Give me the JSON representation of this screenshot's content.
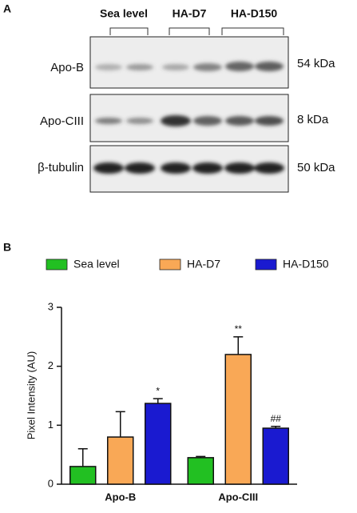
{
  "panel_a": {
    "label": "A",
    "groups": [
      "Sea level",
      "HA-D7",
      "HA-D150"
    ],
    "rows": [
      {
        "name": "Apo-B",
        "size": "54 kDa"
      },
      {
        "name": "Apo-CIII",
        "size": "8 kDa"
      },
      {
        "name": "β-tubulin",
        "size": "50 kDa"
      }
    ]
  },
  "panel_b_label": "B",
  "chart_data": {
    "type": "bar",
    "y_label": "Pixel Intensity (AU)",
    "categories": [
      "Apo-B",
      "Apo-CIII"
    ],
    "series": [
      {
        "name": "Sea level",
        "color": "#22c022",
        "values": [
          0.3,
          0.45
        ],
        "errors": [
          0.3,
          0.02
        ],
        "annotations": [
          null,
          null
        ]
      },
      {
        "name": "HA-D7",
        "color": "#f9a856",
        "values": [
          0.8,
          2.2
        ],
        "errors": [
          0.43,
          0.3
        ],
        "annotations": [
          null,
          "**"
        ]
      },
      {
        "name": "HA-D150",
        "color": "#1a1ad0",
        "values": [
          1.37,
          0.95
        ],
        "errors": [
          0.08,
          0.03
        ],
        "annotations": [
          "*",
          "##"
        ]
      }
    ],
    "ylim": [
      0,
      3
    ],
    "yticks": [
      0,
      1,
      2,
      3
    ]
  }
}
